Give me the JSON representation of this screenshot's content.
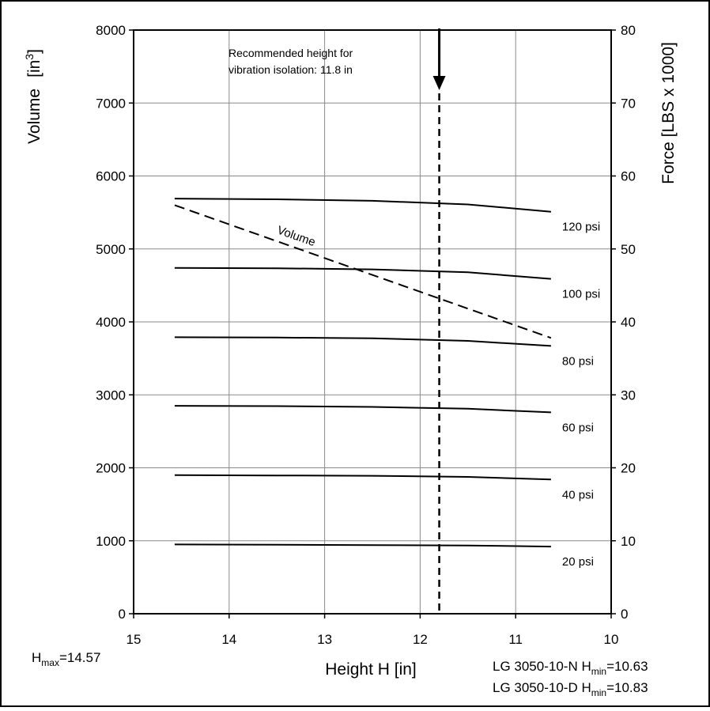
{
  "chart_data": {
    "type": "line",
    "xlabel": "Height H [in]",
    "ylabel": "Volume",
    "ylabel_unit_base": "[in",
    "ylabel_unit_sup": "3",
    "ylabel_unit_close": "]",
    "y2label": "Force [LBS x 1000]",
    "xlim": [
      15,
      10
    ],
    "x_reversed": true,
    "ylim": [
      0,
      8000
    ],
    "y2lim": [
      0,
      80
    ],
    "x_ticks": [
      15,
      14,
      13,
      12,
      11,
      10
    ],
    "y_ticks": [
      0,
      1000,
      2000,
      3000,
      4000,
      5000,
      6000,
      7000,
      8000
    ],
    "y2_ticks": [
      0,
      10,
      20,
      30,
      40,
      50,
      60,
      70,
      80
    ],
    "grid": true,
    "force_series": [
      {
        "name": "20 psi",
        "x": [
          14.57,
          13.5,
          12.5,
          11.5,
          10.63
        ],
        "y": [
          9.5,
          9.45,
          9.4,
          9.35,
          9.2
        ]
      },
      {
        "name": "40 psi",
        "x": [
          14.57,
          13.5,
          12.5,
          11.5,
          10.63
        ],
        "y": [
          19.0,
          18.95,
          18.9,
          18.75,
          18.4
        ]
      },
      {
        "name": "60 psi",
        "x": [
          14.57,
          13.5,
          12.5,
          11.5,
          10.63
        ],
        "y": [
          28.5,
          28.45,
          28.35,
          28.1,
          27.6
        ]
      },
      {
        "name": "80 psi",
        "x": [
          14.57,
          13.5,
          12.5,
          11.5,
          10.63
        ],
        "y": [
          37.9,
          37.85,
          37.75,
          37.4,
          36.7
        ]
      },
      {
        "name": "100 psi",
        "x": [
          14.57,
          13.5,
          12.5,
          11.5,
          10.63
        ],
        "y": [
          47.4,
          47.35,
          47.2,
          46.8,
          45.9
        ]
      },
      {
        "name": "120 psi",
        "x": [
          14.57,
          13.5,
          12.5,
          11.5,
          10.63
        ],
        "y": [
          56.9,
          56.8,
          56.6,
          56.1,
          55.1
        ]
      }
    ],
    "volume_series": {
      "name": "Volume",
      "x": [
        14.57,
        10.63
      ],
      "y": [
        5600,
        3780
      ]
    },
    "reference_line": {
      "x": 11.8,
      "label_line1": "Recommended height for",
      "label_line2": "vibration isolation: 11.8 in"
    }
  },
  "footer": {
    "hmax_label": "H",
    "hmax_sub": "max",
    "hmax_value": "=14.57",
    "model_n": "LG 3050-10-N  H",
    "model_n_sub": "min",
    "model_n_value": "=10.63",
    "model_d": "LG 3050-10-D  H",
    "model_d_sub": "min",
    "model_d_value": "=10.83"
  }
}
